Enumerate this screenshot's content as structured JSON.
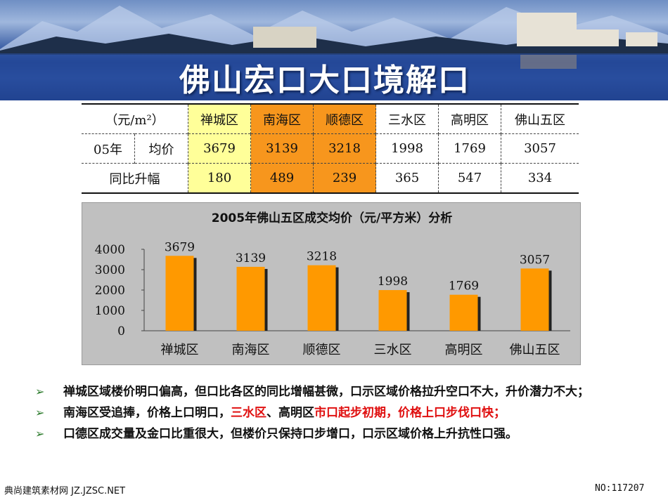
{
  "slide": {
    "title": "佛山宏口大口境解口"
  },
  "table": {
    "unit_header": "（元/m²）",
    "districts": [
      "禅城区",
      "南海区",
      "顺德区",
      "三水区",
      "高明区",
      "佛山五区"
    ],
    "row_label_year": "05年",
    "row_label_avg": "均价",
    "avg_prices": [
      "3679",
      "3139",
      "3218",
      "1998",
      "1769",
      "3057"
    ],
    "row_label_growth": "同比升幅",
    "growth": [
      "180",
      "489",
      "239",
      "365",
      "547",
      "334"
    ],
    "highlight_colors": {
      "yellow": "#ffff99",
      "orange": "#f7961d"
    }
  },
  "chart_data": {
    "type": "bar",
    "title": "2005年佛山五区成交均价（元/平方米）分析",
    "categories": [
      "禅城区",
      "南海区",
      "顺德区",
      "三水区",
      "高明区",
      "佛山五区"
    ],
    "values": [
      3679,
      3139,
      3218,
      1998,
      1769,
      3057
    ],
    "data_labels": [
      "3679",
      "3139",
      "3218",
      "1998",
      "1769",
      "3057"
    ],
    "ylim": [
      0,
      4000
    ],
    "yticks": [
      "0",
      "1000",
      "2000",
      "3000",
      "4000"
    ],
    "bar_color": "#ff9900",
    "background_color": "#c0c0c0",
    "grid": false,
    "legend": "none"
  },
  "bullets": [
    {
      "segments": [
        {
          "text": "禅城区域楼价明口偏高，但口比各区的同比增幅甚微，口示区域价格拉升空口不大，升价潜力不大；",
          "red": false
        }
      ]
    },
    {
      "segments": [
        {
          "text": "南海区受追捧，价格上口明口，",
          "red": false
        },
        {
          "text": "三水区",
          "red": true
        },
        {
          "text": "、高明区",
          "red": false
        },
        {
          "text": "市口起步初期，价格上口步伐口快；",
          "red": true
        }
      ]
    },
    {
      "segments": [
        {
          "text": "口德区成交量及金口比重很大，但楼价只保持口步增口，口示区域价格上升抗性口强。",
          "red": false
        }
      ]
    }
  ],
  "bullet_marker": "➢",
  "footer": {
    "left": "典尚建筑素材网 JZ.JZSC.NET",
    "right": "NO:117207"
  }
}
